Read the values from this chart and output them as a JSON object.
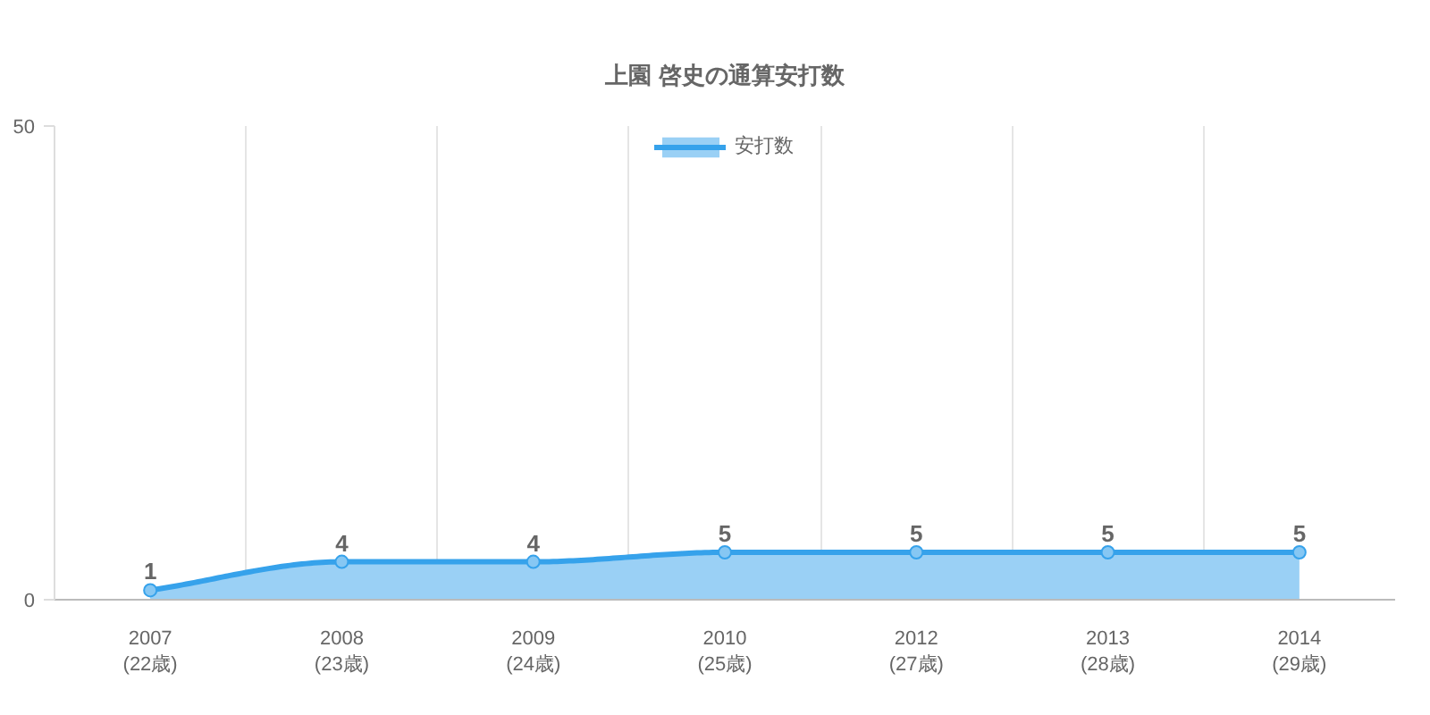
{
  "chart_data": {
    "type": "area",
    "title": "上園 啓史の通算安打数",
    "categories": [
      "2007\n(22歳)",
      "2008\n(23歳)",
      "2009\n(24歳)",
      "2010\n(25歳)",
      "2012\n(27歳)",
      "2013\n(28歳)",
      "2014\n(29歳)"
    ],
    "series": [
      {
        "name": "安打数",
        "color": "#36a2eb",
        "values": [
          1,
          4,
          4,
          5,
          5,
          5,
          5
        ]
      }
    ],
    "ylim": [
      0,
      50
    ],
    "yticks": [
      0,
      50
    ],
    "grid": true,
    "legend": "top",
    "marker": "circle",
    "data_labels": true
  }
}
